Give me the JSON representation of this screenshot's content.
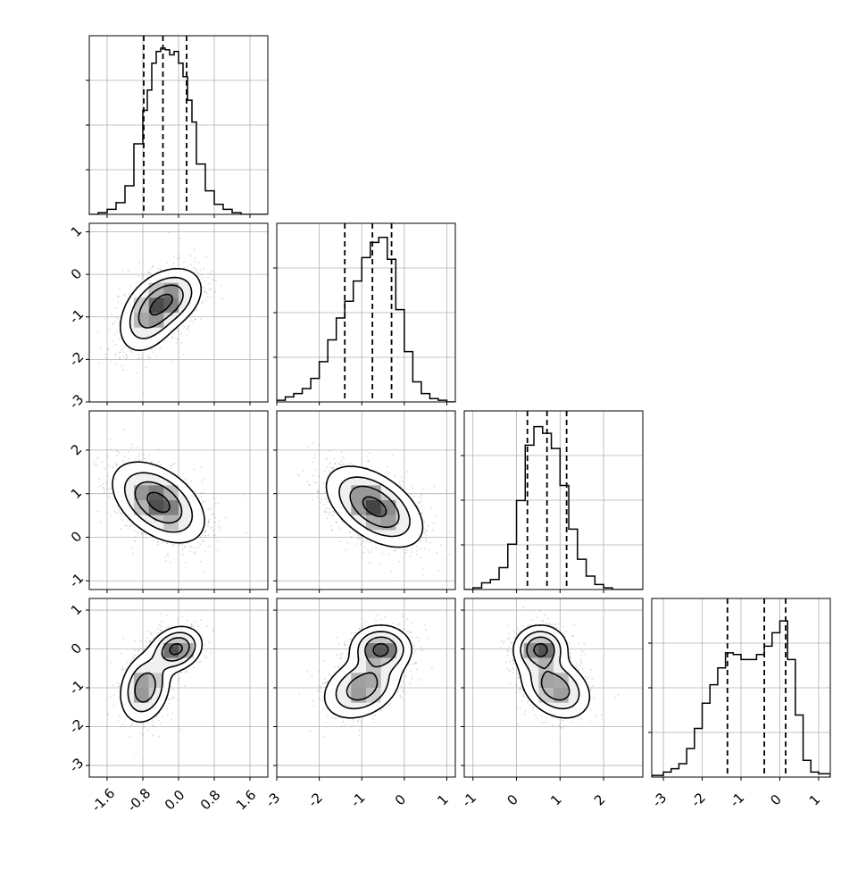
{
  "chart_data": {
    "type": "corner",
    "title": "",
    "n_params": 4,
    "params": [
      {
        "name": "",
        "range": [
          -2.0,
          2.0
        ],
        "ticks": [
          "-1.6",
          "-0.8",
          "0.0",
          "0.8",
          "1.6"
        ],
        "tick_values": [
          -1.6,
          -0.8,
          0.0,
          0.8,
          1.6
        ],
        "quantiles": [
          -0.78,
          -0.35,
          0.18
        ],
        "hist": {
          "bin_edges": [
            -2.0,
            -1.8,
            -1.6,
            -1.4,
            -1.2,
            -1.0,
            -0.8,
            -0.7,
            -0.6,
            -0.5,
            -0.4,
            -0.3,
            -0.2,
            -0.1,
            0.0,
            0.1,
            0.2,
            0.3,
            0.4,
            0.6,
            0.8,
            1.0,
            1.2,
            1.4,
            1.6,
            1.8,
            2.0
          ],
          "counts": [
            0.0,
            0.01,
            0.03,
            0.07,
            0.17,
            0.42,
            0.62,
            0.74,
            0.9,
            0.97,
            0.99,
            0.98,
            0.95,
            0.97,
            0.9,
            0.82,
            0.68,
            0.55,
            0.3,
            0.14,
            0.06,
            0.03,
            0.01,
            0.0,
            0.0,
            0.0
          ]
        }
      },
      {
        "name": "",
        "range": [
          -3.0,
          1.2
        ],
        "ticks": [
          "-3",
          "-2",
          "-1",
          "0",
          "1"
        ],
        "tick_values": [
          -3,
          -2,
          -1,
          0,
          1
        ],
        "quantiles": [
          -1.4,
          -0.75,
          -0.3
        ],
        "hist": {
          "bin_edges": [
            -3.0,
            -2.8,
            -2.6,
            -2.4,
            -2.2,
            -2.0,
            -1.8,
            -1.6,
            -1.4,
            -1.2,
            -1.0,
            -0.8,
            -0.6,
            -0.4,
            -0.2,
            0.0,
            0.2,
            0.4,
            0.6,
            0.8,
            1.0,
            1.2
          ],
          "counts": [
            0.01,
            0.03,
            0.05,
            0.08,
            0.14,
            0.24,
            0.37,
            0.5,
            0.6,
            0.72,
            0.86,
            0.95,
            0.98,
            0.85,
            0.55,
            0.3,
            0.12,
            0.05,
            0.02,
            0.01,
            0.0
          ]
        }
      },
      {
        "name": "",
        "range": [
          -1.2,
          2.9
        ],
        "ticks": [
          "-1",
          "0",
          "1",
          "2"
        ],
        "tick_values": [
          -1,
          0,
          1,
          2
        ],
        "quantiles": [
          0.25,
          0.7,
          1.15
        ],
        "hist": {
          "bin_edges": [
            -1.2,
            -1.0,
            -0.8,
            -0.6,
            -0.4,
            -0.2,
            0.0,
            0.2,
            0.4,
            0.6,
            0.8,
            1.0,
            1.2,
            1.4,
            1.6,
            1.8,
            2.0,
            2.2,
            2.4,
            2.6,
            2.9
          ],
          "counts": [
            0.0,
            0.01,
            0.04,
            0.06,
            0.13,
            0.27,
            0.53,
            0.86,
            0.97,
            0.93,
            0.84,
            0.62,
            0.36,
            0.18,
            0.08,
            0.03,
            0.01,
            0.0,
            0.0,
            0.0
          ]
        }
      },
      {
        "name": "",
        "range": [
          -3.3,
          1.3
        ],
        "ticks": [
          "-3",
          "-2",
          "-1",
          "0",
          "1"
        ],
        "tick_values": [
          -3,
          -2,
          -1,
          0,
          1
        ],
        "quantiles": [
          -1.35,
          -0.4,
          0.15
        ],
        "hist": {
          "bin_edges": [
            -3.3,
            -3.0,
            -2.8,
            -2.6,
            -2.4,
            -2.2,
            -2.0,
            -1.8,
            -1.6,
            -1.4,
            -1.2,
            -1.0,
            -0.8,
            -0.6,
            -0.4,
            -0.2,
            0.0,
            0.2,
            0.4,
            0.6,
            0.8,
            1.0,
            1.3
          ],
          "counts": [
            0.01,
            0.03,
            0.05,
            0.08,
            0.17,
            0.29,
            0.44,
            0.55,
            0.65,
            0.74,
            0.73,
            0.7,
            0.7,
            0.73,
            0.78,
            0.86,
            0.93,
            0.7,
            0.37,
            0.1,
            0.03,
            0.02
          ]
        }
      }
    ],
    "pairs": [
      {
        "x": 0,
        "y": 1,
        "modes": [
          {
            "mx": -0.65,
            "my": -0.95,
            "sx": 0.35,
            "sy": 0.45,
            "r": 0.35,
            "w": 0.5
          },
          {
            "mx": -0.15,
            "my": -0.55,
            "sx": 0.35,
            "sy": 0.35,
            "r": 0.3,
            "w": 0.5
          }
        ]
      },
      {
        "x": 0,
        "y": 2,
        "modes": [
          {
            "mx": -0.45,
            "my": 0.8,
            "sx": 0.5,
            "sy": 0.45,
            "r": -0.45,
            "w": 1.0
          }
        ]
      },
      {
        "x": 1,
        "y": 2,
        "modes": [
          {
            "mx": -0.7,
            "my": 0.7,
            "sx": 0.55,
            "sy": 0.45,
            "r": -0.5,
            "w": 1.0
          }
        ]
      },
      {
        "x": 0,
        "y": 3,
        "modes": [
          {
            "mx": -0.05,
            "my": 0.0,
            "sx": 0.28,
            "sy": 0.28,
            "r": 0.2,
            "w": 0.55
          },
          {
            "mx": -0.75,
            "my": -1.0,
            "sx": 0.28,
            "sy": 0.45,
            "r": 0.2,
            "w": 0.45
          }
        ]
      },
      {
        "x": 1,
        "y": 3,
        "modes": [
          {
            "mx": -0.55,
            "my": 0.0,
            "sx": 0.35,
            "sy": 0.3,
            "r": 0.0,
            "w": 0.55
          },
          {
            "mx": -1.0,
            "my": -1.0,
            "sx": 0.45,
            "sy": 0.4,
            "r": 0.3,
            "w": 0.45
          }
        ]
      },
      {
        "x": 2,
        "y": 3,
        "modes": [
          {
            "mx": 0.55,
            "my": 0.0,
            "sx": 0.3,
            "sy": 0.3,
            "r": 0.0,
            "w": 0.55
          },
          {
            "mx": 0.9,
            "my": -1.0,
            "sx": 0.4,
            "sy": 0.4,
            "r": -0.3,
            "w": 0.45
          }
        ]
      }
    ],
    "contour_levels": [
      0.12,
      0.32,
      0.58,
      0.88
    ],
    "grid": true,
    "style": {
      "line_color": "#000000",
      "grid_color": "#b0b0b0",
      "point_color": "#7f7f7f",
      "frame_color": "#000000"
    }
  }
}
